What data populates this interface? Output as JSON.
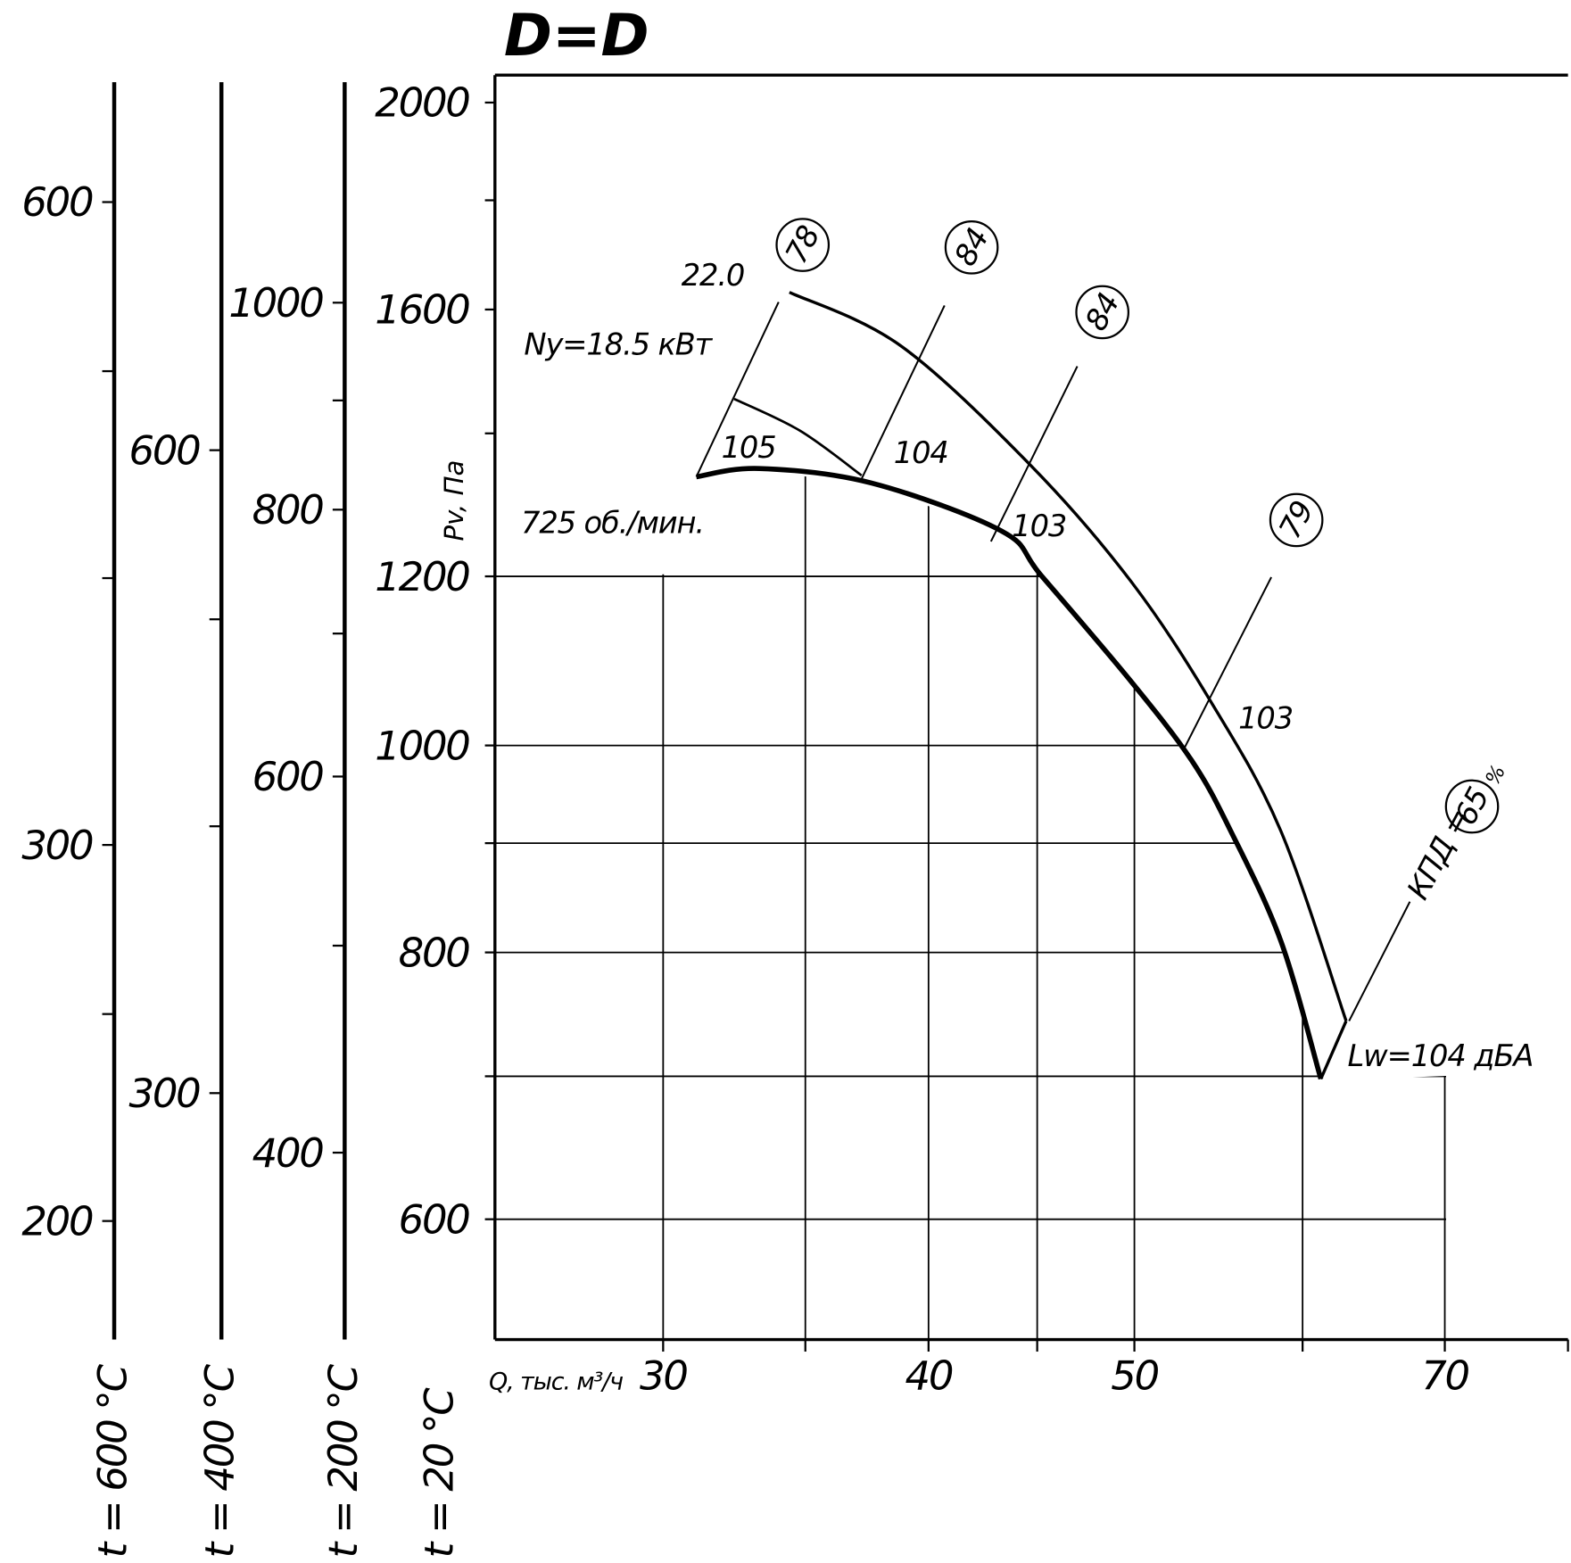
{
  "chart_data": {
    "type": "line",
    "title": "D=D",
    "x_label": "Q, тыс. м³/ч",
    "y_label": "Pv, Па",
    "y_axis_label": "t = 20 °C",
    "log_x": true,
    "log_y": true,
    "grid": true,
    "color": "#000000",
    "xlim": [
      25,
      80
    ],
    "xticks": [
      30,
      40,
      50,
      70
    ],
    "xminorticks": [
      35,
      45,
      60,
      80
    ],
    "ylim": [
      527,
      2060
    ],
    "yticks": [
      600,
      800,
      1000,
      1200,
      1600,
      2000
    ],
    "yminorticks": [
      700,
      900,
      1400,
      1800
    ],
    "series": [
      {
        "x": [
          34.4,
          38.8,
          44.7,
          49.8,
          54.3,
          58.6,
          62.9
        ],
        "values": [
          1630,
          1539,
          1352,
          1194,
          1049,
          912,
          743
        ]
      },
      {
        "x": [
          32.4,
          34.8,
          37.2
        ],
        "values": [
          1453,
          1404,
          1338
        ]
      },
      {
        "x": [
          31.1,
          33.3,
          37.6,
          43.3,
          45.2,
          49.8,
          53.2,
          55.5,
          58.6,
          61.2
        ],
        "values": [
          1336,
          1348,
          1327,
          1260,
          1201,
          1072,
          984,
          912,
          810,
          698
        ]
      }
    ],
    "efficiency_lines": [
      {
        "value": 78,
        "x": [
          31.1,
          34.0
        ],
        "y": [
          1336,
          1613
        ]
      },
      {
        "value": 84,
        "x": [
          37.2,
          40.7
        ],
        "y": [
          1333,
          1607
        ]
      },
      {
        "value": 84,
        "x": [
          42.8,
          47.0
        ],
        "y": [
          1246,
          1505
        ]
      },
      {
        "value": 79,
        "x": [
          52.7,
          58.0
        ],
        "y": [
          994,
          1199
        ]
      },
      {
        "value": 65,
        "x": [
          63.1,
          67.4
        ],
        "y": [
          743,
          845
        ]
      }
    ],
    "noise_levels": [
      105,
      104,
      103,
      103
    ],
    "annotations": [
      "22.0",
      "Ny=18.5 кВт",
      "725 об./мин.",
      "Lw=104 дБА",
      "КПД =",
      "%"
    ],
    "temperature_axes": [
      {
        "label": "t = 600 °C",
        "ylim": [
          176,
          688
        ],
        "yticks": [
          200,
          300,
          600
        ],
        "yminorticks": [
          250,
          400,
          500
        ]
      },
      {
        "label": "t = 400 °C",
        "ylim": [
          230,
          899
        ],
        "yticks": [
          300,
          600
        ],
        "yminorticks": [
          400,
          500
        ]
      },
      {
        "label": "t = 200 °C",
        "ylim": [
          327,
          1278
        ],
        "yticks": [
          400,
          600,
          800,
          1000
        ],
        "yminorticks": [
          500,
          700,
          900
        ]
      }
    ]
  }
}
